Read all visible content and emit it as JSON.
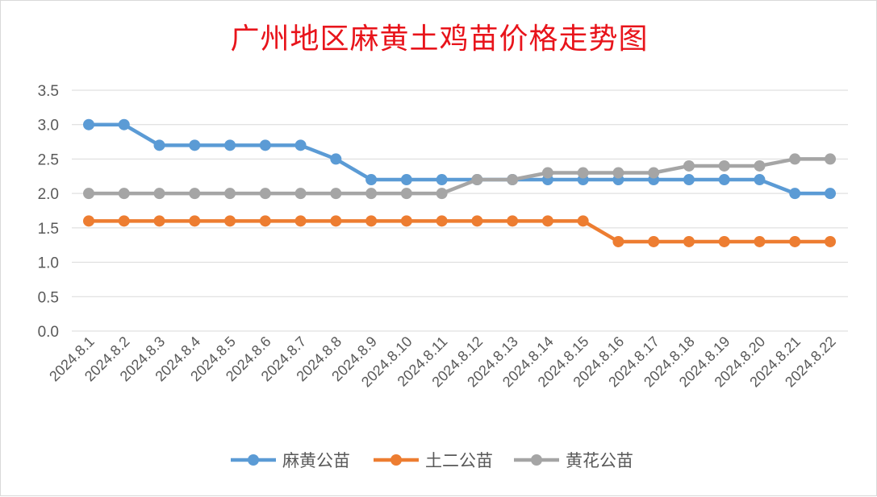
{
  "chart_data": {
    "type": "line",
    "title": "广州地区麻黄土鸡苗价格走势图",
    "categories": [
      "2024.8.1",
      "2024.8.2",
      "2024.8.3",
      "2024.8.4",
      "2024.8.5",
      "2024.8.6",
      "2024.8.7",
      "2024.8.8",
      "2024.8.9",
      "2024.8.10",
      "2024.8.11",
      "2024.8.12",
      "2024.8.13",
      "2024.8.14",
      "2024.8.15",
      "2024.8.16",
      "2024.8.17",
      "2024.8.18",
      "2024.8.19",
      "2024.8.20",
      "2024.8.21",
      "2024.8.22"
    ],
    "series": [
      {
        "name": "麻黄公苗",
        "color": "#5b9bd5",
        "values": [
          3.0,
          3.0,
          2.7,
          2.7,
          2.7,
          2.7,
          2.7,
          2.5,
          2.2,
          2.2,
          2.2,
          2.2,
          2.2,
          2.2,
          2.2,
          2.2,
          2.2,
          2.2,
          2.2,
          2.2,
          2.0,
          2.0
        ]
      },
      {
        "name": "土二公苗",
        "color": "#ed7d31",
        "values": [
          1.6,
          1.6,
          1.6,
          1.6,
          1.6,
          1.6,
          1.6,
          1.6,
          1.6,
          1.6,
          1.6,
          1.6,
          1.6,
          1.6,
          1.6,
          1.3,
          1.3,
          1.3,
          1.3,
          1.3,
          1.3,
          1.3
        ]
      },
      {
        "name": "黄花公苗",
        "color": "#a5a5a5",
        "values": [
          2.0,
          2.0,
          2.0,
          2.0,
          2.0,
          2.0,
          2.0,
          2.0,
          2.0,
          2.0,
          2.0,
          2.2,
          2.2,
          2.3,
          2.3,
          2.3,
          2.3,
          2.4,
          2.4,
          2.4,
          2.5,
          2.5
        ]
      }
    ],
    "yticks": [
      "0.0",
      "0.5",
      "1.0",
      "1.5",
      "2.0",
      "2.5",
      "3.0",
      "3.5"
    ],
    "ylim": [
      0,
      3.5
    ],
    "grid": true,
    "legend": "bottom"
  }
}
